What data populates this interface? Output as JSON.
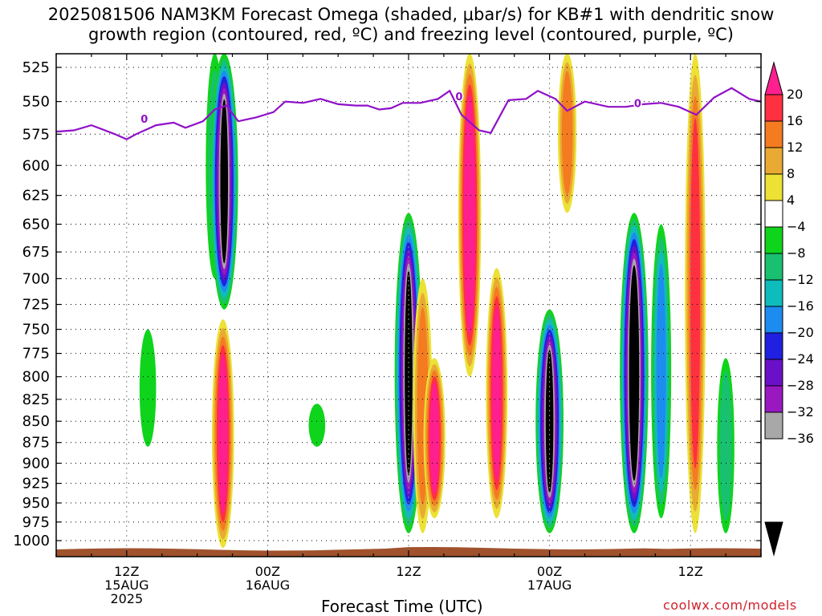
{
  "title": {
    "line1": "2025081506 NAM3KM Forecast Omega (shaded, μbar/s) for KB#1 with dendritic snow",
    "line2": "growth region (contoured, red, ºC) and freezing level (contoured, purple, ºC)"
  },
  "xlabel": "Forecast Time (UTC)",
  "credit": "coolwx.com/models",
  "chart_data": {
    "type": "heatmap",
    "title": "2025081506 NAM3KM Forecast Omega (shaded, μbar/s) for KB#1 with dendritic snow growth region (contoured, red, ºC) and freezing level (contoured, purple, ºC)",
    "xlabel": "Forecast Time (UTC)",
    "ylabel": "",
    "x_unit": "forecast hours from 2025-08-15 06Z",
    "xlim": [
      0,
      60
    ],
    "ylim": [
      1010,
      515
    ],
    "y_scale": "log-pressure",
    "y_ticks": [
      525,
      550,
      575,
      600,
      625,
      650,
      675,
      700,
      725,
      750,
      775,
      800,
      825,
      850,
      875,
      900,
      925,
      950,
      975,
      1000
    ],
    "x_ticks": [
      {
        "hour": 6,
        "labels": [
          "12Z",
          "15AUG",
          "2025"
        ]
      },
      {
        "hour": 18,
        "labels": [
          "00Z",
          "16AUG"
        ]
      },
      {
        "hour": 30,
        "labels": [
          "12Z"
        ]
      },
      {
        "hour": 42,
        "labels": [
          "00Z",
          "17AUG"
        ]
      },
      {
        "hour": 54,
        "labels": [
          "12Z"
        ]
      }
    ],
    "grid": true,
    "colorbar": {
      "ticks": [
        20,
        16,
        12,
        8,
        4,
        -4,
        -8,
        -12,
        -16,
        -20,
        -24,
        -28,
        -32,
        -36
      ],
      "bins": [
        {
          "range": [
            20,
            null
          ],
          "color": "#ff1f8f"
        },
        {
          "range": [
            16,
            20
          ],
          "color": "#ff3040"
        },
        {
          "range": [
            12,
            16
          ],
          "color": "#f57b20"
        },
        {
          "range": [
            8,
            12
          ],
          "color": "#e9aa33"
        },
        {
          "range": [
            4,
            8
          ],
          "color": "#ece135"
        },
        {
          "range": [
            -4,
            4
          ],
          "color": "#ffffff"
        },
        {
          "range": [
            -8,
            -4
          ],
          "color": "#0fd41c"
        },
        {
          "range": [
            -12,
            -8
          ],
          "color": "#19c070"
        },
        {
          "range": [
            -16,
            -12
          ],
          "color": "#0fbcbc"
        },
        {
          "range": [
            -20,
            -16
          ],
          "color": "#1d8cf0"
        },
        {
          "range": [
            -24,
            -20
          ],
          "color": "#2020e0"
        },
        {
          "range": [
            -28,
            -24
          ],
          "color": "#6a10c8"
        },
        {
          "range": [
            -32,
            -28
          ],
          "color": "#9a18c0"
        },
        {
          "range": [
            -36,
            -32
          ],
          "color": "#a8a8a8"
        },
        {
          "range": [
            null,
            -36
          ],
          "color": "#000000"
        }
      ]
    },
    "omega_features": [
      {
        "hour": 13.5,
        "p_top": 515,
        "p_bot": 700,
        "min": -10
      },
      {
        "hour": 14.3,
        "p_top": 515,
        "p_bot": 730,
        "min": -38
      },
      {
        "hour": 14.2,
        "p_top": 740,
        "p_bot": 1010,
        "max": 22
      },
      {
        "hour": 7.8,
        "p_top": 750,
        "p_bot": 880,
        "min": -6
      },
      {
        "hour": 22.2,
        "p_top": 830,
        "p_bot": 880,
        "min": -6
      },
      {
        "hour": 30.0,
        "p_top": 640,
        "p_bot": 990,
        "min": -38
      },
      {
        "hour": 31.2,
        "p_top": 700,
        "p_bot": 990,
        "max": 14
      },
      {
        "hour": 32.2,
        "p_top": 780,
        "p_bot": 970,
        "max": 21
      },
      {
        "hour": 35.2,
        "p_top": 515,
        "p_bot": 800,
        "max": 24
      },
      {
        "hour": 37.5,
        "p_top": 690,
        "p_bot": 970,
        "max": 20
      },
      {
        "hour": 42.0,
        "p_top": 730,
        "p_bot": 990,
        "min": -38
      },
      {
        "hour": 43.5,
        "p_top": 515,
        "p_bot": 640,
        "max": 12
      },
      {
        "hour": 49.2,
        "p_top": 640,
        "p_bot": 990,
        "min": -40
      },
      {
        "hour": 51.5,
        "p_top": 650,
        "p_bot": 970,
        "min": -16
      },
      {
        "hour": 54.4,
        "p_top": 515,
        "p_bot": 990,
        "max": 18
      },
      {
        "hour": 57.0,
        "p_top": 780,
        "p_bot": 990,
        "min": -8
      }
    ],
    "freezing_level": {
      "label": "0",
      "points": [
        [
          0,
          573
        ],
        [
          1.5,
          572
        ],
        [
          3,
          568
        ],
        [
          5,
          575
        ],
        [
          6,
          579
        ],
        [
          6.8,
          575
        ],
        [
          8.5,
          568
        ],
        [
          10,
          566
        ],
        [
          11,
          570
        ],
        [
          12.5,
          565
        ],
        [
          13.5,
          556
        ],
        [
          14.5,
          553
        ],
        [
          15.5,
          565
        ],
        [
          17,
          562
        ],
        [
          18.5,
          558
        ],
        [
          19.5,
          550
        ],
        [
          21,
          551
        ],
        [
          22.5,
          548
        ],
        [
          24,
          552
        ],
        [
          25.5,
          553
        ],
        [
          26.5,
          553
        ],
        [
          27.5,
          556
        ],
        [
          28.5,
          555
        ],
        [
          29.5,
          551
        ],
        [
          31,
          551
        ],
        [
          32.5,
          548
        ],
        [
          33.5,
          542
        ],
        [
          34.5,
          560
        ],
        [
          36,
          572
        ],
        [
          37,
          574
        ],
        [
          38.5,
          549
        ],
        [
          40,
          548
        ],
        [
          41,
          542
        ],
        [
          42.5,
          548
        ],
        [
          43.5,
          557
        ],
        [
          45,
          550
        ],
        [
          47,
          554
        ],
        [
          48.5,
          554
        ],
        [
          50,
          552
        ],
        [
          51.5,
          551
        ],
        [
          53,
          554
        ],
        [
          54.5,
          560
        ],
        [
          56,
          547
        ],
        [
          57.5,
          540
        ],
        [
          59,
          548
        ],
        [
          60,
          550
        ]
      ]
    }
  }
}
